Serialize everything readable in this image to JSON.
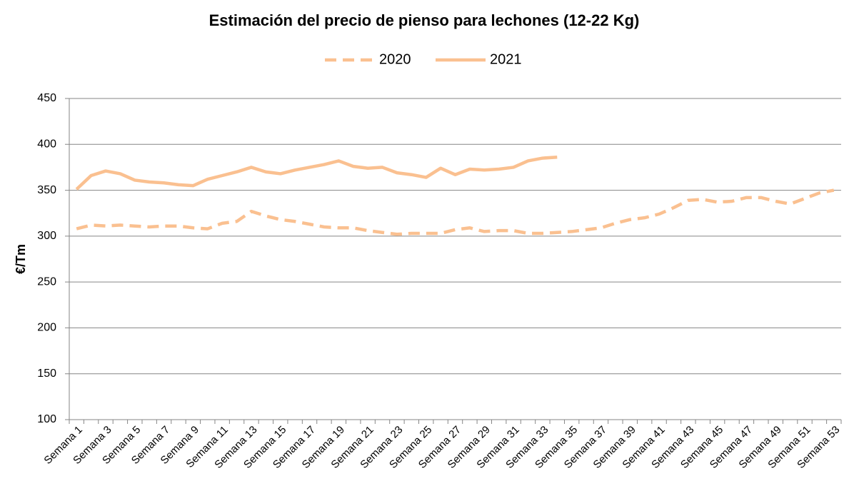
{
  "chart_data": {
    "type": "line",
    "title": "Estimación del precio de pienso para lechones (12-22 Kg)",
    "ylabel": "€/Tm",
    "categories": [
      "Semana 1",
      null,
      "Semana 3",
      null,
      "Semana 5",
      null,
      "Semana 7",
      null,
      "Semana 9",
      null,
      "Semana 11",
      null,
      "Semana 13",
      null,
      "Semana 15",
      null,
      "Semana 17",
      null,
      "Semana 19",
      null,
      "Semana 21",
      null,
      "Semana 23",
      null,
      "Semana 25",
      null,
      "Semana 27",
      null,
      "Semana 29",
      null,
      "Semana 31",
      null,
      "Semana 33",
      null,
      "Semana 35",
      null,
      "Semana 37",
      null,
      "Semana 39",
      null,
      "Semana 41",
      null,
      "Semana 43",
      null,
      "Semana 45",
      null,
      "Semana 47",
      null,
      "Semana 49",
      null,
      "Semana 51",
      null,
      "Semana 53"
    ],
    "series": [
      {
        "name": "2020",
        "color": "#fac090",
        "line_style": "dashed",
        "values": [
          308,
          312,
          311,
          312,
          311,
          310,
          311,
          311,
          309,
          308,
          314,
          316,
          327,
          322,
          318,
          316,
          313,
          310,
          309,
          309,
          306,
          304,
          302,
          303,
          303,
          303,
          307,
          309,
          305,
          306,
          306,
          303,
          303,
          304,
          305,
          307,
          309,
          314,
          318,
          320,
          324,
          331,
          339,
          340,
          337,
          338,
          342,
          342,
          338,
          335,
          341,
          347,
          350
        ]
      },
      {
        "name": "2021",
        "color": "#fac090",
        "line_style": "solid",
        "values": [
          351,
          366,
          371,
          368,
          361,
          359,
          358,
          356,
          355,
          362,
          366,
          370,
          375,
          370,
          368,
          372,
          375,
          378,
          382,
          376,
          374,
          375,
          369,
          367,
          364,
          374,
          367,
          373,
          372,
          373,
          375,
          382,
          385,
          386,
          null,
          null,
          null,
          null,
          null,
          null,
          null,
          null,
          null,
          null,
          null,
          null,
          null,
          null,
          null,
          null,
          null,
          null,
          null
        ]
      }
    ],
    "ylim": [
      100,
      450
    ],
    "yticks": [
      100,
      150,
      200,
      250,
      300,
      350,
      400,
      450
    ],
    "grid": true,
    "legend": "top"
  }
}
